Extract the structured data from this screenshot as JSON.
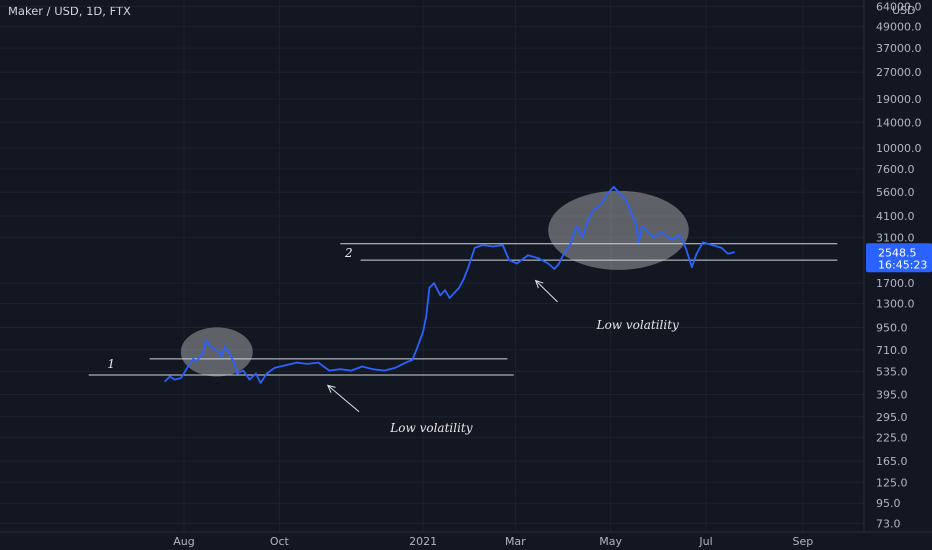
{
  "header": {
    "symbol_title": "Maker / USD, 1D, FTX"
  },
  "currency_label": "USD",
  "colors": {
    "background": "#131722",
    "price_line": "#2962ff",
    "grid": "#1e222d",
    "level_line": "#d1d4dc",
    "highlight": "#d9d9d9",
    "last_price_bg": "#2962ff"
  },
  "last_price": {
    "value": "2548.5",
    "countdown": "16:45:23"
  },
  "chart_data": {
    "type": "line",
    "scale": "log",
    "ylim": [
      66,
      66000
    ],
    "y_ticks": [
      "64000.0",
      "49000.0",
      "37000.0",
      "27000.0",
      "19000.0",
      "14000.0",
      "10000.0",
      "7600.0",
      "5600.0",
      "4100.0",
      "3100.0",
      "1700.0",
      "1300.0",
      "950.0",
      "710.0",
      "535.0",
      "395.0",
      "295.0",
      "225.0",
      "165.0",
      "125.0",
      "95.0",
      "73.0"
    ],
    "x_ticks": [
      "Aug",
      "Oct",
      "2021",
      "Mar",
      "May",
      "Jul",
      "Sep"
    ],
    "series": [
      {
        "values": [
          {
            "x": "2020-07-20",
            "y": 470
          },
          {
            "x": "2020-07-23",
            "y": 500
          },
          {
            "x": "2020-07-26",
            "y": 480
          },
          {
            "x": "2020-07-30",
            "y": 490
          },
          {
            "x": "2020-08-02",
            "y": 540
          },
          {
            "x": "2020-08-05",
            "y": 600
          },
          {
            "x": "2020-08-07",
            "y": 630
          },
          {
            "x": "2020-08-09",
            "y": 610
          },
          {
            "x": "2020-08-13",
            "y": 680
          },
          {
            "x": "2020-08-15",
            "y": 800
          },
          {
            "x": "2020-08-17",
            "y": 760
          },
          {
            "x": "2020-08-20",
            "y": 720
          },
          {
            "x": "2020-08-23",
            "y": 690
          },
          {
            "x": "2020-08-25",
            "y": 650
          },
          {
            "x": "2020-08-27",
            "y": 740
          },
          {
            "x": "2020-08-30",
            "y": 680
          },
          {
            "x": "2020-09-02",
            "y": 600
          },
          {
            "x": "2020-09-04",
            "y": 520
          },
          {
            "x": "2020-09-08",
            "y": 540
          },
          {
            "x": "2020-09-12",
            "y": 480
          },
          {
            "x": "2020-09-16",
            "y": 520
          },
          {
            "x": "2020-09-19",
            "y": 460
          },
          {
            "x": "2020-09-23",
            "y": 520
          },
          {
            "x": "2020-09-28",
            "y": 560
          },
          {
            "x": "2020-10-05",
            "y": 580
          },
          {
            "x": "2020-10-12",
            "y": 600
          },
          {
            "x": "2020-10-19",
            "y": 590
          },
          {
            "x": "2020-10-26",
            "y": 600
          },
          {
            "x": "2020-11-02",
            "y": 540
          },
          {
            "x": "2020-11-09",
            "y": 550
          },
          {
            "x": "2020-11-16",
            "y": 540
          },
          {
            "x": "2020-11-23",
            "y": 570
          },
          {
            "x": "2020-11-30",
            "y": 550
          },
          {
            "x": "2020-12-07",
            "y": 540
          },
          {
            "x": "2020-12-14",
            "y": 560
          },
          {
            "x": "2020-12-21",
            "y": 600
          },
          {
            "x": "2020-12-25",
            "y": 620
          },
          {
            "x": "2020-12-28",
            "y": 720
          },
          {
            "x": "2021-01-01",
            "y": 900
          },
          {
            "x": "2021-01-03",
            "y": 1100
          },
          {
            "x": "2021-01-05",
            "y": 1600
          },
          {
            "x": "2021-01-08",
            "y": 1700
          },
          {
            "x": "2021-01-12",
            "y": 1450
          },
          {
            "x": "2021-01-15",
            "y": 1550
          },
          {
            "x": "2021-01-18",
            "y": 1400
          },
          {
            "x": "2021-01-21",
            "y": 1500
          },
          {
            "x": "2021-01-24",
            "y": 1600
          },
          {
            "x": "2021-01-27",
            "y": 1800
          },
          {
            "x": "2021-01-30",
            "y": 2100
          },
          {
            "x": "2021-02-03",
            "y": 2700
          },
          {
            "x": "2021-02-08",
            "y": 2800
          },
          {
            "x": "2021-02-15",
            "y": 2750
          },
          {
            "x": "2021-02-21",
            "y": 2800
          },
          {
            "x": "2021-02-25",
            "y": 2300
          },
          {
            "x": "2021-03-02",
            "y": 2200
          },
          {
            "x": "2021-03-09",
            "y": 2450
          },
          {
            "x": "2021-03-16",
            "y": 2350
          },
          {
            "x": "2021-03-22",
            "y": 2200
          },
          {
            "x": "2021-03-26",
            "y": 2050
          },
          {
            "x": "2021-03-29",
            "y": 2200
          },
          {
            "x": "2021-04-01",
            "y": 2500
          },
          {
            "x": "2021-04-05",
            "y": 2800
          },
          {
            "x": "2021-04-09",
            "y": 3600
          },
          {
            "x": "2021-04-13",
            "y": 3100
          },
          {
            "x": "2021-04-17",
            "y": 4000
          },
          {
            "x": "2021-04-21",
            "y": 4500
          },
          {
            "x": "2021-04-25",
            "y": 4800
          },
          {
            "x": "2021-04-29",
            "y": 5500
          },
          {
            "x": "2021-05-03",
            "y": 6000
          },
          {
            "x": "2021-05-07",
            "y": 5500
          },
          {
            "x": "2021-05-11",
            "y": 5000
          },
          {
            "x": "2021-05-14",
            "y": 4300
          },
          {
            "x": "2021-05-17",
            "y": 3700
          },
          {
            "x": "2021-05-19",
            "y": 2900
          },
          {
            "x": "2021-05-21",
            "y": 3600
          },
          {
            "x": "2021-05-24",
            "y": 3400
          },
          {
            "x": "2021-05-28",
            "y": 3100
          },
          {
            "x": "2021-06-03",
            "y": 3300
          },
          {
            "x": "2021-06-09",
            "y": 3000
          },
          {
            "x": "2021-06-14",
            "y": 3200
          },
          {
            "x": "2021-06-18",
            "y": 2700
          },
          {
            "x": "2021-06-22",
            "y": 2100
          },
          {
            "x": "2021-06-25",
            "y": 2500
          },
          {
            "x": "2021-06-29",
            "y": 2900
          },
          {
            "x": "2021-07-05",
            "y": 2800
          },
          {
            "x": "2021-07-11",
            "y": 2700
          },
          {
            "x": "2021-07-15",
            "y": 2500
          },
          {
            "x": "2021-07-19",
            "y": 2548.5
          }
        ]
      }
    ],
    "levels": [
      {
        "y": 630,
        "x_from": "2020-07-10",
        "x_to": "2021-02-24"
      },
      {
        "y": 510,
        "x_from": "2020-06-01",
        "x_to": "2021-02-28"
      },
      {
        "y": 2850,
        "x_from": "2020-11-09",
        "x_to": "2021-09-23"
      },
      {
        "y": 2300,
        "x_from": "2020-11-22",
        "x_to": "2021-09-23"
      }
    ],
    "annotations": [
      {
        "text": "1",
        "x": "2020-06-13",
        "y": 560
      },
      {
        "text": "2",
        "x": "2020-11-12",
        "y": 2400
      },
      {
        "text": "Low volatility",
        "x": "2020-12-11",
        "y": 242
      },
      {
        "text": "Low volatility",
        "x": "2021-04-22",
        "y": 930
      }
    ],
    "arrows": [
      {
        "from": {
          "x": "2020-11-21",
          "y": 315
        },
        "to": {
          "x": "2020-11-01",
          "y": 445
        }
      },
      {
        "from": {
          "x": "2021-03-28",
          "y": 1330
        },
        "to": {
          "x": "2021-03-14",
          "y": 1760
        }
      }
    ],
    "highlights": [
      {
        "cx": "2020-08-22",
        "cy": 690,
        "rx_days": 23,
        "ry_ratio": 1.38
      },
      {
        "cx": "2021-05-06",
        "cy": 3400,
        "rx_days": 45,
        "ry_ratio": 1.68
      }
    ]
  }
}
